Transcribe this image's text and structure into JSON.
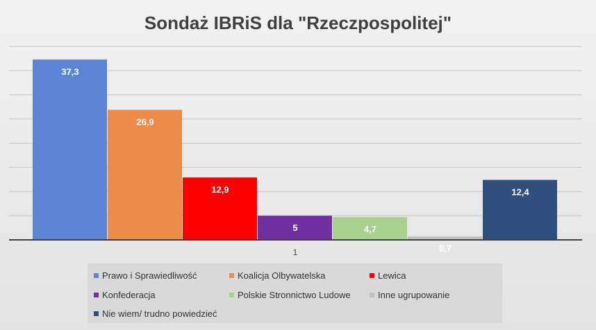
{
  "chart_data": {
    "type": "bar",
    "title": "Sondaż IBRiS dla \"Rzeczpospolitej\"",
    "categories": [
      "1"
    ],
    "ylim": [
      0,
      40
    ],
    "grid": true,
    "legend_position": "bottom",
    "series": [
      {
        "name": "Prawo i Sprawiedliwość",
        "values": [
          37.3
        ],
        "label": "37,3",
        "color": "#5b84d4"
      },
      {
        "name": "Koalicja Olbywatelska",
        "values": [
          26.9
        ],
        "label": "26,9",
        "color": "#ed8b48"
      },
      {
        "name": "Lewica",
        "values": [
          12.9
        ],
        "label": "12,9",
        "color": "#ff0000"
      },
      {
        "name": "Konfederacja",
        "values": [
          5
        ],
        "label": "5",
        "color": "#7030a0"
      },
      {
        "name": "Polskie Stronnictwo Ludowe",
        "values": [
          4.7
        ],
        "label": "4,7",
        "color": "#a9d18e"
      },
      {
        "name": "Inne ugrupowanie",
        "values": [
          0.7
        ],
        "label": "0,7",
        "color": "#bfbfbf"
      },
      {
        "name": "Nie wiem/ trudno powiedzieć",
        "values": [
          12.4
        ],
        "label": "12,4",
        "color": "#2f4f7f"
      }
    ]
  }
}
